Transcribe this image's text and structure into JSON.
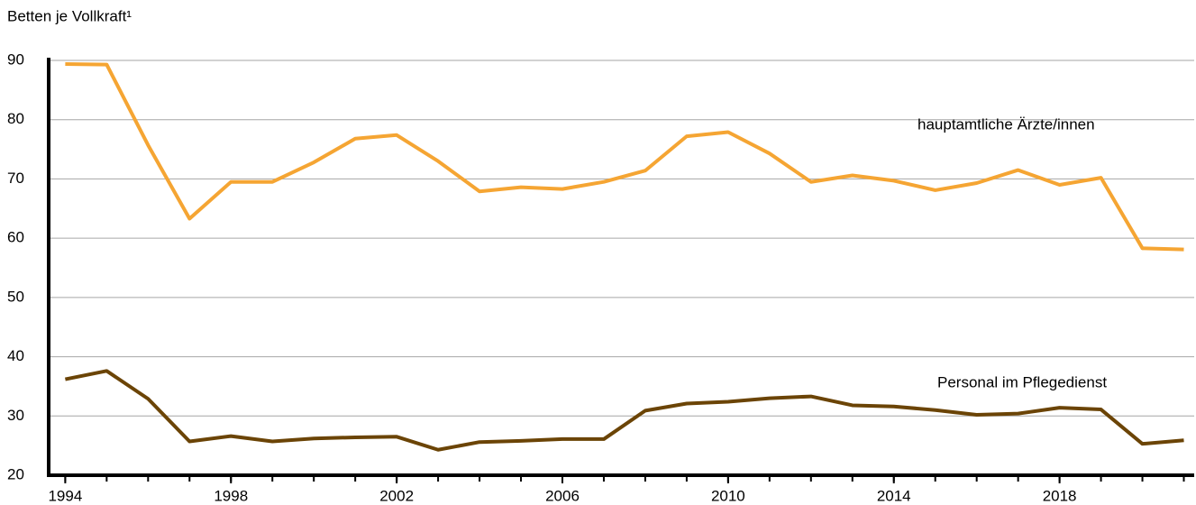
{
  "chart_data": {
    "type": "line",
    "y_axis_label": "Betten je Vollkraft¹",
    "x": [
      1994,
      1995,
      1996,
      1997,
      1998,
      1999,
      2000,
      2001,
      2002,
      2003,
      2004,
      2005,
      2006,
      2007,
      2008,
      2009,
      2010,
      2011,
      2012,
      2013,
      2014,
      2015,
      2016,
      2017,
      2018,
      2019,
      2020,
      2021
    ],
    "series": [
      {
        "name": "hauptamtliche Ärzte/innen",
        "color": "#f5a533",
        "values": [
          89.4,
          89.3,
          75.7,
          63.3,
          69.5,
          69.5,
          72.8,
          76.8,
          77.4,
          73.0,
          67.9,
          68.6,
          68.3,
          69.5,
          71.4,
          77.2,
          77.9,
          74.3,
          69.5,
          70.6,
          69.7,
          68.1,
          69.3,
          71.5,
          69.0,
          70.2,
          58.3,
          58.1
        ]
      },
      {
        "name": "Personal im Pflegedienst",
        "color": "#6b4406",
        "values": [
          36.2,
          37.6,
          32.9,
          25.7,
          26.6,
          25.7,
          26.2,
          26.4,
          26.5,
          24.3,
          25.6,
          25.8,
          26.1,
          26.1,
          30.9,
          32.1,
          32.4,
          33.0,
          33.3,
          31.8,
          31.6,
          31.0,
          30.2,
          30.4,
          31.4,
          31.1,
          25.3,
          25.9
        ]
      }
    ],
    "xlim": [
      1993.6,
      2021.25
    ],
    "xticks": [
      1994,
      1998,
      2002,
      2006,
      2010,
      2014,
      2018
    ],
    "ylim": [
      20,
      90
    ],
    "yticks": [
      20,
      30,
      40,
      50,
      60,
      70,
      80,
      90
    ],
    "grid": true
  }
}
